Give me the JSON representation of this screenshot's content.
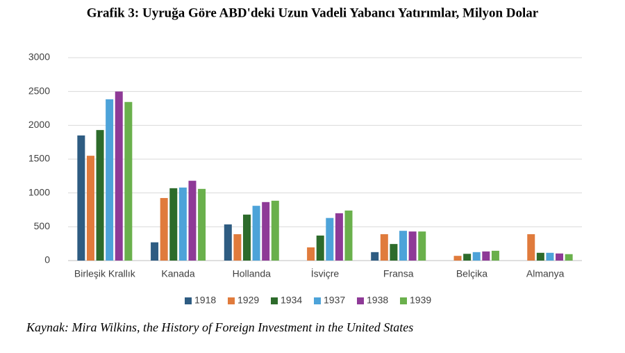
{
  "chart_data": {
    "type": "bar",
    "title": "Grafik 3: Uyruğa Göre ABD'deki Uzun Vadeli Yabancı Yatırımlar, Milyon Dolar",
    "source": "Kaynak: Mira Wilkins, the History of Foreign Investment in the United States",
    "categories": [
      "Birleşik Krallık",
      "Kanada",
      "Hollanda",
      "İsviçre",
      "Fransa",
      "Belçika",
      "Almanya"
    ],
    "series": [
      {
        "name": "1918",
        "color": "#2e5c82",
        "values": [
          1850,
          270,
          535,
          null,
          125,
          null,
          null
        ]
      },
      {
        "name": "1929",
        "color": "#e07b3c",
        "values": [
          1550,
          925,
          390,
          195,
          390,
          70,
          390
        ]
      },
      {
        "name": "1934",
        "color": "#2d6b2b",
        "values": [
          1930,
          1070,
          680,
          370,
          245,
          100,
          115
        ]
      },
      {
        "name": "1937",
        "color": "#4da3d9",
        "values": [
          2385,
          1080,
          810,
          630,
          440,
          125,
          115
        ]
      },
      {
        "name": "1938",
        "color": "#8e3a97",
        "values": [
          2500,
          1180,
          865,
          700,
          430,
          135,
          105
        ]
      },
      {
        "name": "1939",
        "color": "#6ab04c",
        "values": [
          2345,
          1060,
          885,
          740,
          430,
          145,
          95
        ]
      }
    ],
    "ylim": [
      0,
      3000
    ],
    "yticks": [
      0,
      500,
      1000,
      1500,
      2000,
      2500,
      3000
    ],
    "grid": true,
    "legend": "bottom"
  }
}
